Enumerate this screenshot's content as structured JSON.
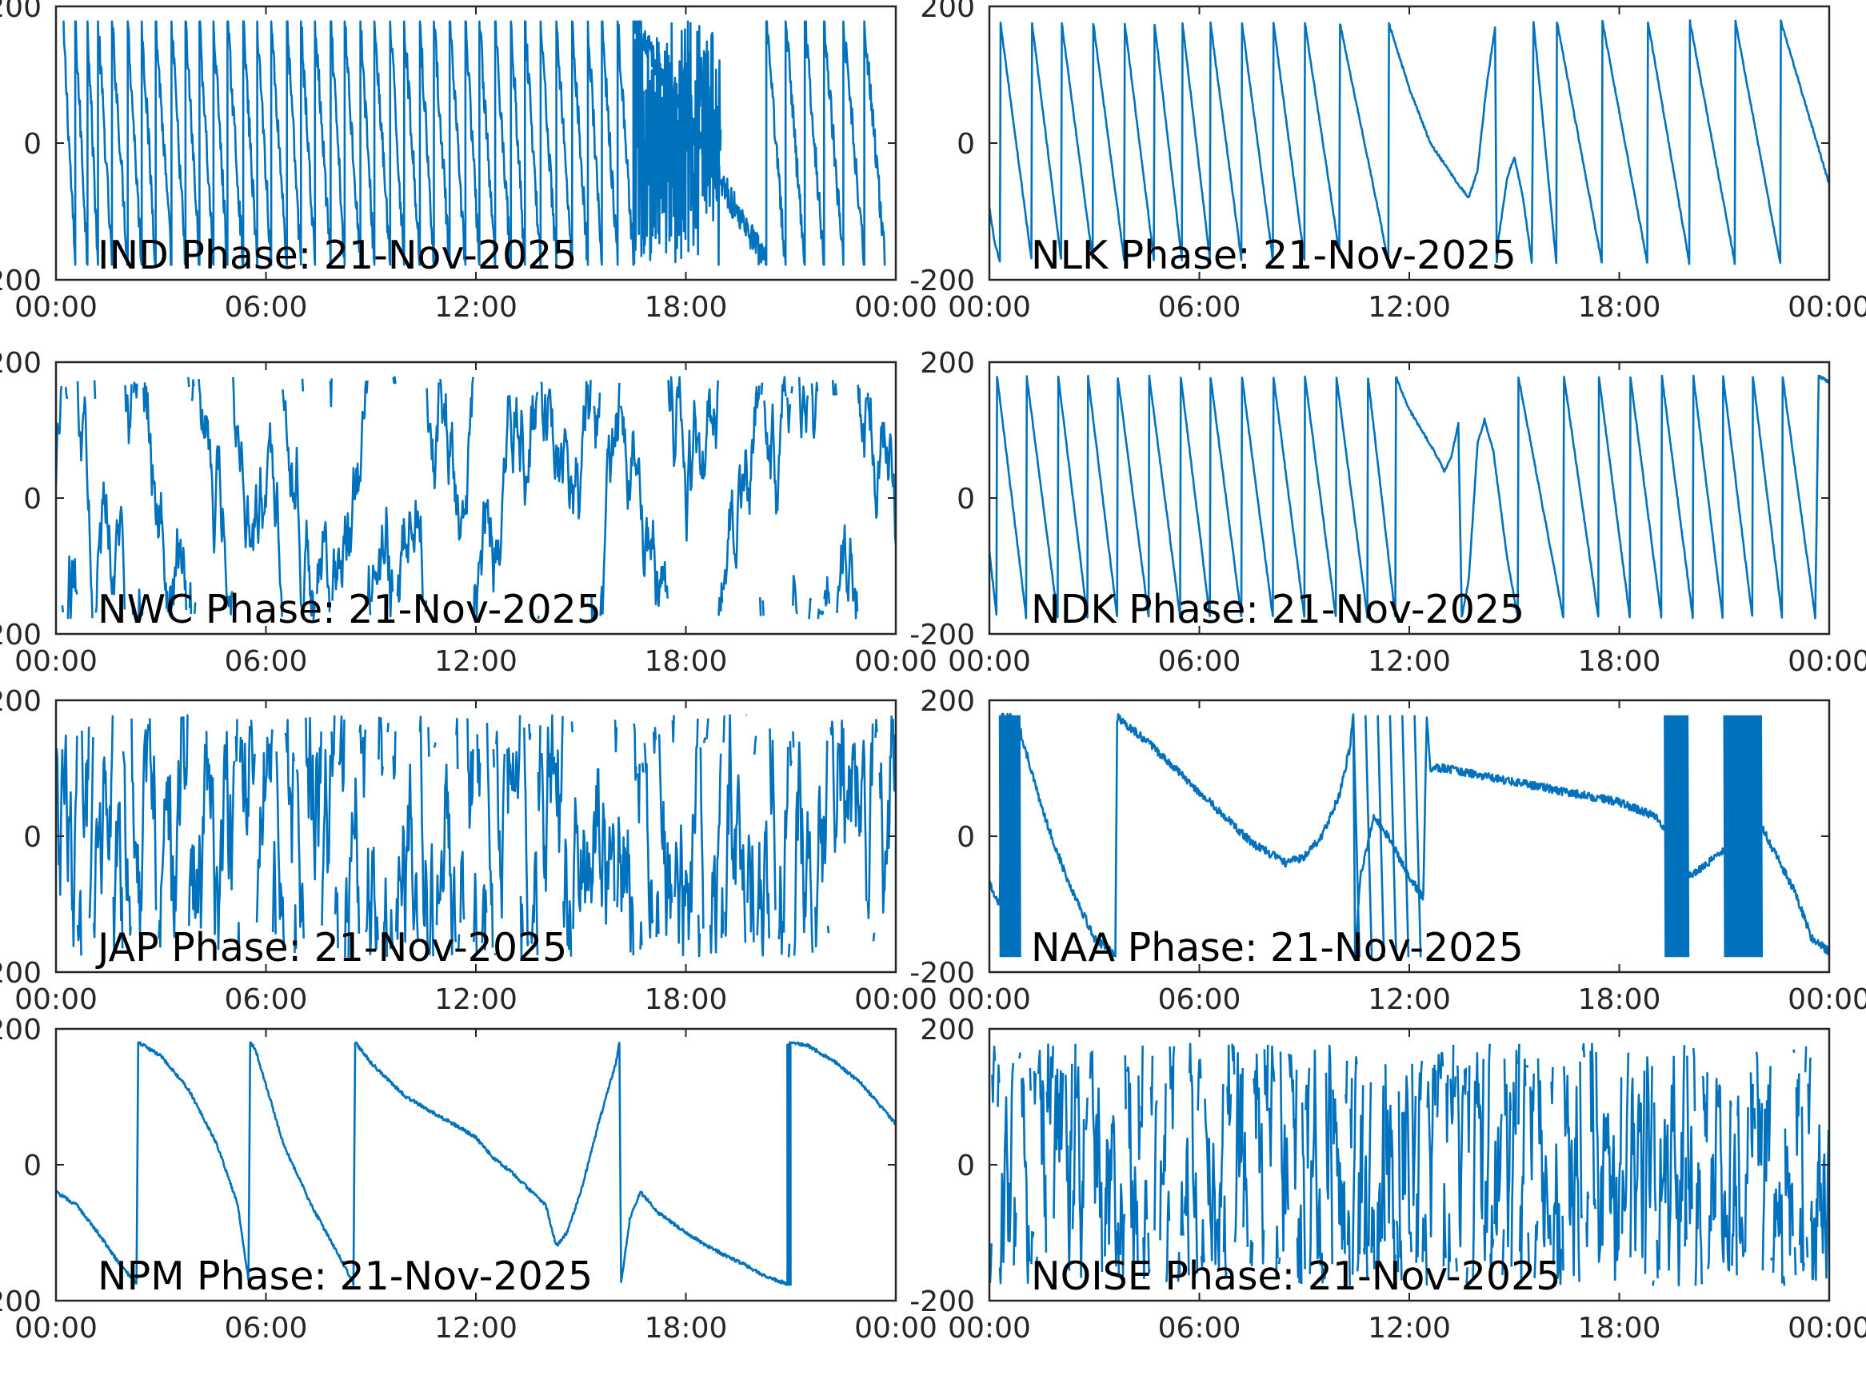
{
  "figure": {
    "line_color": "#0072BD",
    "frame_color": "#262626",
    "background": "#ffffff"
  },
  "chart_data": [
    {
      "type": "line",
      "label": "IND Phase: 21-Nov-2025",
      "x_ticks": [
        "00:00",
        "06:00",
        "12:00",
        "18:00",
        "00:00"
      ],
      "y_ticks": [
        "-200",
        "0",
        "200"
      ],
      "xlim": [
        "00:00",
        "24:00"
      ],
      "ylim": [
        -200,
        200
      ],
      "grid": false,
      "trace": {
        "kind": "sawtooth",
        "wraps": [
          0.2,
          0.55,
          0.9,
          1.2,
          1.6,
          2.05,
          2.45,
          2.85,
          3.3,
          3.7,
          4.1,
          4.5,
          4.9,
          5.35,
          5.75,
          6.15,
          6.6,
          7.0,
          7.4,
          7.85,
          8.25,
          8.7,
          9.1,
          9.55,
          9.95,
          10.4,
          10.8,
          11.25,
          11.7,
          12.1,
          12.55,
          13.0,
          13.4,
          13.85,
          14.3,
          14.75,
          15.2,
          15.6,
          16.05,
          16.5,
          20.3,
          20.85,
          21.4,
          21.95,
          22.5,
          23.1,
          23.7
        ],
        "chaotic_segments": [
          [
            16.5,
            19.0,
            0.55
          ]
        ],
        "noise": 45
      }
    },
    {
      "type": "line",
      "label": "NLK Phase: 21-Nov-2025",
      "x_ticks": [
        "00:00",
        "06:00",
        "12:00",
        "18:00",
        "00:00"
      ],
      "y_ticks": [
        "-200",
        "0",
        "200"
      ],
      "xlim": [
        "00:00",
        "24:00"
      ],
      "ylim": [
        -200,
        200
      ],
      "grid": false,
      "points": [
        [
          0.0,
          -95
        ],
        [
          0.15,
          -145
        ],
        [
          0.3,
          -175
        ],
        [
          0.32,
          175
        ],
        [
          1.2,
          -170
        ],
        [
          1.22,
          175
        ],
        [
          2.05,
          -170
        ],
        [
          2.07,
          175
        ],
        [
          2.95,
          -170
        ],
        [
          2.97,
          175
        ],
        [
          3.85,
          -170
        ],
        [
          3.87,
          175
        ],
        [
          4.7,
          -170
        ],
        [
          4.72,
          175
        ],
        [
          5.5,
          -170
        ],
        [
          5.52,
          175
        ],
        [
          6.3,
          -170
        ],
        [
          6.32,
          175
        ],
        [
          7.2,
          -170
        ],
        [
          7.22,
          175
        ],
        [
          8.1,
          -170
        ],
        [
          8.12,
          175
        ],
        [
          9.0,
          -170
        ],
        [
          9.02,
          175
        ],
        [
          10.0,
          -160
        ],
        [
          10.02,
          175
        ],
        [
          11.2,
          -120
        ],
        [
          11.4,
          -175
        ],
        [
          11.42,
          175
        ],
        [
          12.0,
          80
        ],
        [
          12.6,
          0
        ],
        [
          13.4,
          -60
        ],
        [
          13.7,
          -80
        ],
        [
          13.95,
          -40
        ],
        [
          14.2,
          80
        ],
        [
          14.45,
          170
        ],
        [
          14.5,
          -175
        ],
        [
          14.55,
          -140
        ],
        [
          14.8,
          -50
        ],
        [
          15.0,
          -20
        ],
        [
          15.25,
          -80
        ],
        [
          15.5,
          -175
        ],
        [
          15.55,
          178
        ],
        [
          16.2,
          -175
        ],
        [
          16.22,
          178
        ],
        [
          17.5,
          -175
        ],
        [
          17.52,
          178
        ],
        [
          18.8,
          -175
        ],
        [
          18.82,
          178
        ],
        [
          20.0,
          -175
        ],
        [
          20.02,
          178
        ],
        [
          21.3,
          -175
        ],
        [
          21.32,
          178
        ],
        [
          22.6,
          -175
        ],
        [
          22.62,
          178
        ],
        [
          24.0,
          -60
        ]
      ],
      "noise": 4
    },
    {
      "type": "line",
      "label": "NWC Phase: 21-Nov-2025",
      "x_ticks": [
        "00:00",
        "06:00",
        "12:00",
        "18:00",
        "00:00"
      ],
      "y_ticks": [
        "-200",
        "0",
        "200"
      ],
      "xlim": [
        "00:00",
        "24:00"
      ],
      "ylim": [
        -200,
        200
      ],
      "grid": false,
      "trace": {
        "kind": "chaotic",
        "segments": [
          [
            0.0,
            24.0,
            0.5
          ]
        ],
        "noise": 90
      }
    },
    {
      "type": "line",
      "label": "NDK Phase: 21-Nov-2025",
      "x_ticks": [
        "00:00",
        "06:00",
        "12:00",
        "18:00",
        "00:00"
      ],
      "y_ticks": [
        "-200",
        "0",
        "200"
      ],
      "xlim": [
        "00:00",
        "24:00"
      ],
      "ylim": [
        -200,
        200
      ],
      "grid": false,
      "points": [
        [
          0.0,
          -80
        ],
        [
          0.2,
          -170
        ],
        [
          0.22,
          180
        ],
        [
          1.05,
          -175
        ],
        [
          1.07,
          178
        ],
        [
          1.95,
          -175
        ],
        [
          1.97,
          178
        ],
        [
          2.8,
          -175
        ],
        [
          2.82,
          178
        ],
        [
          3.65,
          -175
        ],
        [
          3.67,
          178
        ],
        [
          4.55,
          -175
        ],
        [
          4.57,
          178
        ],
        [
          5.45,
          -175
        ],
        [
          5.47,
          178
        ],
        [
          6.3,
          -175
        ],
        [
          6.32,
          178
        ],
        [
          7.2,
          -175
        ],
        [
          7.22,
          178
        ],
        [
          8.1,
          -175
        ],
        [
          8.12,
          178
        ],
        [
          9.0,
          -175
        ],
        [
          9.02,
          178
        ],
        [
          9.9,
          -175
        ],
        [
          9.92,
          178
        ],
        [
          10.8,
          -175
        ],
        [
          10.82,
          178
        ],
        [
          11.6,
          -175
        ],
        [
          11.62,
          178
        ],
        [
          12.0,
          130
        ],
        [
          12.7,
          70
        ],
        [
          13.0,
          40
        ],
        [
          13.2,
          60
        ],
        [
          13.4,
          110
        ],
        [
          13.5,
          -175
        ],
        [
          13.7,
          -120
        ],
        [
          13.95,
          80
        ],
        [
          14.15,
          115
        ],
        [
          14.4,
          70
        ],
        [
          14.8,
          -90
        ],
        [
          15.1,
          -175
        ],
        [
          15.12,
          178
        ],
        [
          16.4,
          -175
        ],
        [
          16.42,
          178
        ],
        [
          17.4,
          -175
        ],
        [
          17.42,
          178
        ],
        [
          18.3,
          -175
        ],
        [
          18.32,
          178
        ],
        [
          19.2,
          -175
        ],
        [
          19.22,
          178
        ],
        [
          20.1,
          -175
        ],
        [
          20.12,
          178
        ],
        [
          20.95,
          -175
        ],
        [
          20.97,
          178
        ],
        [
          21.8,
          -175
        ],
        [
          21.82,
          178
        ],
        [
          22.65,
          -175
        ],
        [
          22.67,
          178
        ],
        [
          23.6,
          -175
        ],
        [
          23.7,
          180
        ],
        [
          24.0,
          170
        ]
      ],
      "noise": 4
    },
    {
      "type": "line",
      "label": "JAP Phase: 21-Nov-2025",
      "x_ticks": [
        "00:00",
        "06:00",
        "12:00",
        "18:00",
        "00:00"
      ],
      "y_ticks": [
        "-200",
        "0",
        "200"
      ],
      "xlim": [
        "00:00",
        "24:00"
      ],
      "ylim": [
        -200,
        200
      ],
      "grid": false,
      "trace": {
        "kind": "chaotic",
        "segments": [
          [
            0.0,
            24.0,
            0.8
          ]
        ],
        "noise": 110
      }
    },
    {
      "type": "line",
      "label": "NAA Phase: 21-Nov-2025",
      "x_ticks": [
        "00:00",
        "06:00",
        "12:00",
        "18:00",
        "00:00"
      ],
      "y_ticks": [
        "-200",
        "0",
        "200"
      ],
      "xlim": [
        "00:00",
        "24:00"
      ],
      "ylim": [
        -200,
        200
      ],
      "grid": false,
      "points": [
        [
          0.0,
          -70
        ],
        [
          0.3,
          -100
        ],
        [
          0.35,
          180
        ],
        [
          0.6,
          175
        ],
        [
          0.8,
          170
        ],
        [
          1.5,
          40
        ],
        [
          2.2,
          -60
        ],
        [
          3.0,
          -150
        ],
        [
          3.6,
          -175
        ],
        [
          3.65,
          175
        ],
        [
          4.5,
          140
        ],
        [
          5.5,
          90
        ],
        [
          6.5,
          40
        ],
        [
          7.5,
          -10
        ],
        [
          8.5,
          -40
        ],
        [
          9.0,
          -30
        ],
        [
          9.5,
          0
        ],
        [
          10.0,
          60
        ],
        [
          10.3,
          130
        ],
        [
          10.4,
          180
        ],
        [
          10.45,
          -175
        ],
        [
          10.6,
          -60
        ],
        [
          11.0,
          30
        ],
        [
          11.5,
          -10
        ],
        [
          12.0,
          -60
        ],
        [
          12.4,
          -90
        ],
        [
          12.5,
          180
        ],
        [
          12.6,
          100
        ],
        [
          13.0,
          100
        ],
        [
          14.0,
          90
        ],
        [
          15.0,
          80
        ],
        [
          16.0,
          70
        ],
        [
          17.0,
          60
        ],
        [
          18.0,
          50
        ],
        [
          19.0,
          30
        ],
        [
          19.5,
          0
        ],
        [
          19.8,
          -20
        ],
        [
          20.0,
          -60
        ],
        [
          20.5,
          -40
        ],
        [
          21.0,
          -20
        ],
        [
          21.5,
          0
        ],
        [
          22.0,
          20
        ],
        [
          22.5,
          -30
        ],
        [
          23.0,
          -80
        ],
        [
          23.5,
          -150
        ],
        [
          24.0,
          -170
        ]
      ],
      "dense_segments": [
        [
          0.3,
          0.9,
          0.04
        ],
        [
          10.4,
          12.4,
          0.35
        ],
        [
          19.3,
          20.0,
          0.05
        ],
        [
          21.0,
          22.1,
          0.05
        ]
      ],
      "noise": 12
    },
    {
      "type": "line",
      "label": "NPM Phase: 21-Nov-2025",
      "x_ticks": [
        "00:00",
        "06:00",
        "12:00",
        "18:00",
        "00:00"
      ],
      "y_ticks": [
        "-200",
        "0",
        "200"
      ],
      "xlim": [
        "00:00",
        "24:00"
      ],
      "ylim": [
        -200,
        200
      ],
      "grid": false,
      "points": [
        [
          0.0,
          -40
        ],
        [
          0.6,
          -60
        ],
        [
          1.2,
          -100
        ],
        [
          1.8,
          -145
        ],
        [
          2.3,
          -175
        ],
        [
          2.35,
          180
        ],
        [
          3.0,
          160
        ],
        [
          3.8,
          110
        ],
        [
          4.6,
          30
        ],
        [
          5.2,
          -60
        ],
        [
          5.5,
          -170
        ],
        [
          5.55,
          180
        ],
        [
          5.7,
          170
        ],
        [
          6.5,
          30
        ],
        [
          7.3,
          -60
        ],
        [
          8.1,
          -135
        ],
        [
          8.5,
          -175
        ],
        [
          8.55,
          180
        ],
        [
          9.0,
          150
        ],
        [
          10.0,
          100
        ],
        [
          11.0,
          70
        ],
        [
          11.7,
          50
        ],
        [
          12.0,
          40
        ],
        [
          12.5,
          10
        ],
        [
          13.0,
          -10
        ],
        [
          13.6,
          -40
        ],
        [
          14.0,
          -60
        ],
        [
          14.3,
          -120
        ],
        [
          14.6,
          -100
        ],
        [
          15.0,
          -40
        ],
        [
          15.5,
          60
        ],
        [
          16.0,
          150
        ],
        [
          16.1,
          180
        ],
        [
          16.15,
          -175
        ],
        [
          16.4,
          -80
        ],
        [
          16.7,
          -40
        ],
        [
          17.2,
          -70
        ],
        [
          18.0,
          -100
        ],
        [
          18.8,
          -125
        ],
        [
          19.6,
          -145
        ],
        [
          20.3,
          -165
        ],
        [
          20.9,
          -175
        ],
        [
          20.95,
          180
        ],
        [
          21.5,
          175
        ],
        [
          22.3,
          150
        ],
        [
          23.0,
          120
        ],
        [
          24.0,
          60
        ]
      ],
      "dense_segments": [
        [
          20.9,
          21.0,
          0.01
        ]
      ],
      "noise": 5
    },
    {
      "type": "line",
      "label": "NOISE Phase: 21-Nov-2025",
      "x_ticks": [
        "00:00",
        "06:00",
        "12:00",
        "18:00",
        "00:00"
      ],
      "y_ticks": [
        "-200",
        "0",
        "200"
      ],
      "xlim": [
        "00:00",
        "24:00"
      ],
      "ylim": [
        -200,
        200
      ],
      "grid": false,
      "trace": {
        "kind": "chaotic",
        "segments": [
          [
            0.0,
            24.0,
            1.2
          ]
        ],
        "noise": 100
      }
    }
  ]
}
